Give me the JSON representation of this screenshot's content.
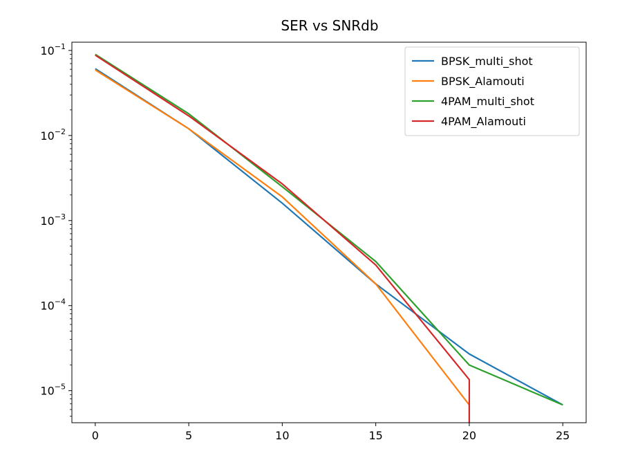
{
  "chart_data": {
    "type": "line",
    "title": "SER vs SNRdb",
    "xlabel": "",
    "ylabel": "",
    "xlim": [
      -1.25,
      26.25
    ],
    "ylim": [
      4.2e-06,
      0.125
    ],
    "y_scale": "log",
    "grid": false,
    "legend_position": "top-right",
    "x_ticks": [
      0,
      5,
      10,
      15,
      20,
      25
    ],
    "x_tick_labels": [
      "0",
      "5",
      "10",
      "15",
      "20",
      "25"
    ],
    "y_ticks": [
      0.1,
      0.01,
      0.001,
      0.0001,
      1e-05
    ],
    "y_tick_labels": [
      {
        "base": "10",
        "exp": "−1"
      },
      {
        "base": "10",
        "exp": "−2"
      },
      {
        "base": "10",
        "exp": "−3"
      },
      {
        "base": "10",
        "exp": "−4"
      },
      {
        "base": "10",
        "exp": "−5"
      }
    ],
    "series": [
      {
        "name": "BPSK_multi_shot",
        "color": "#1f77b4",
        "points": [
          [
            0,
            0.061
          ],
          [
            5,
            0.012
          ],
          [
            10,
            0.0016
          ],
          [
            15,
            0.00018
          ],
          [
            20,
            2.7e-05
          ],
          [
            25,
            6.8e-06
          ]
        ]
      },
      {
        "name": "BPSK_Alamouti",
        "color": "#ff7f0e",
        "points": [
          [
            0,
            0.059
          ],
          [
            5,
            0.012
          ],
          [
            10,
            0.0019
          ],
          [
            15,
            0.00018
          ],
          [
            20,
            6.8e-06
          ],
          [
            20,
            4.2e-06
          ]
        ]
      },
      {
        "name": "4PAM_multi_shot",
        "color": "#2ca02c",
        "points": [
          [
            0,
            0.09
          ],
          [
            5,
            0.018
          ],
          [
            10,
            0.0025
          ],
          [
            15,
            0.00033
          ],
          [
            20,
            2e-05
          ],
          [
            25,
            6.8e-06
          ]
        ]
      },
      {
        "name": "4PAM_Alamouti",
        "color": "#d62728",
        "points": [
          [
            0,
            0.088
          ],
          [
            5,
            0.017
          ],
          [
            10,
            0.0027
          ],
          [
            15,
            0.0003
          ],
          [
            20,
            1.35e-05
          ],
          [
            20,
            4.2e-06
          ]
        ]
      }
    ]
  }
}
